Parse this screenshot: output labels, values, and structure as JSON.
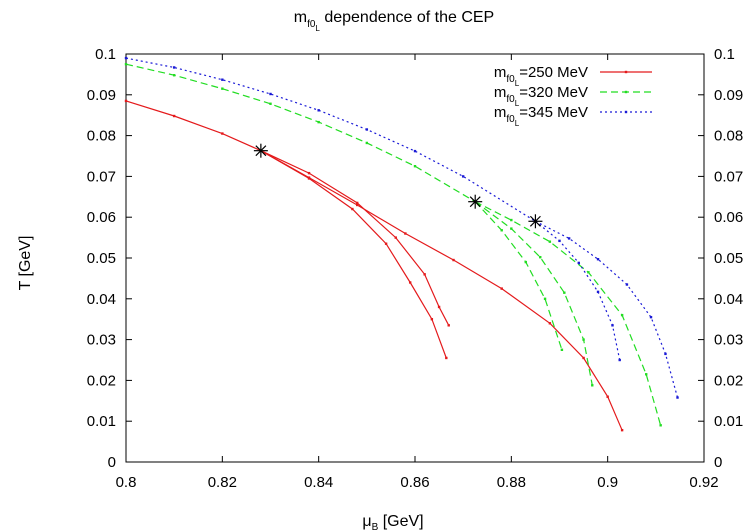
{
  "chart_data": {
    "type": "line",
    "title": {
      "base": "m",
      "sub": "f0",
      "subsub": "L",
      "rest": " dependence of the CEP"
    },
    "xlabel": {
      "base": "μ",
      "sub": "B",
      "rest": "  [GeV]"
    },
    "ylabel": "T [GeV]",
    "xlim": [
      0.8,
      0.92
    ],
    "ylim": [
      0,
      0.1
    ],
    "xticks": [
      "0.8",
      "0.82",
      "0.84",
      "0.86",
      "0.88",
      "0.9",
      "0.92"
    ],
    "yticks": [
      "0",
      "0.01",
      "0.02",
      "0.03",
      "0.04",
      "0.05",
      "0.06",
      "0.07",
      "0.08",
      "0.09",
      "0.1"
    ],
    "y2ticks": [
      "0",
      "0.01",
      "0.02",
      "0.03",
      "0.04",
      "0.05",
      "0.06",
      "0.07",
      "0.08",
      "0.09",
      "0.1"
    ],
    "legend_position": "top-right",
    "grid": false,
    "series": [
      {
        "name_parts": {
          "base": "m",
          "sub": "f0",
          "subsub": "L",
          "rest": "=250 MeV"
        },
        "color": "#e41a1c",
        "dash": "solid",
        "curves": [
          {
            "x": [
              0.8,
              0.81,
              0.82,
              0.828
            ],
            "y": [
              0.0885,
              0.0848,
              0.0805,
              0.0763
            ]
          },
          {
            "x": [
              0.828,
              0.838,
              0.848,
              0.858,
              0.868,
              0.878,
              0.888,
              0.895,
              0.9,
              0.903
            ],
            "y": [
              0.0763,
              0.0697,
              0.063,
              0.056,
              0.0495,
              0.0425,
              0.034,
              0.0255,
              0.016,
              0.0078
            ]
          },
          {
            "x": [
              0.828,
              0.838,
              0.848,
              0.856,
              0.862,
              0.865,
              0.867
            ],
            "y": [
              0.0763,
              0.0708,
              0.0635,
              0.055,
              0.046,
              0.038,
              0.0335
            ]
          },
          {
            "x": [
              0.828,
              0.838,
              0.847,
              0.854,
              0.859,
              0.8635,
              0.8665
            ],
            "y": [
              0.0763,
              0.0695,
              0.062,
              0.0535,
              0.044,
              0.035,
              0.0255
            ]
          }
        ]
      },
      {
        "name_parts": {
          "base": "m",
          "sub": "f0",
          "subsub": "L",
          "rest": "=320 MeV"
        },
        "color": "#22dd22",
        "dash": "dashed",
        "curves": [
          {
            "x": [
              0.8,
              0.81,
              0.82,
              0.83,
              0.84,
              0.85,
              0.86,
              0.8725
            ],
            "y": [
              0.0975,
              0.0948,
              0.0915,
              0.0878,
              0.0833,
              0.0782,
              0.0725,
              0.0638
            ]
          },
          {
            "x": [
              0.8725,
              0.88,
              0.888,
              0.896,
              0.903,
              0.908,
              0.911
            ],
            "y": [
              0.0638,
              0.0593,
              0.054,
              0.0465,
              0.036,
              0.0215,
              0.009
            ]
          },
          {
            "x": [
              0.8725,
              0.88,
              0.886,
              0.891,
              0.895,
              0.8968
            ],
            "y": [
              0.0638,
              0.0572,
              0.0502,
              0.0415,
              0.03,
              0.0188
            ]
          },
          {
            "x": [
              0.8725,
              0.878,
              0.883,
              0.887,
              0.8905
            ],
            "y": [
              0.0638,
              0.0568,
              0.049,
              0.04,
              0.0275
            ]
          }
        ]
      },
      {
        "name_parts": {
          "base": "m",
          "sub": "f0",
          "subsub": "L",
          "rest": "=345 MeV"
        },
        "color": "#1a1ad6",
        "dash": "dotted",
        "curves": [
          {
            "x": [
              0.8,
              0.81,
              0.82,
              0.83,
              0.84,
              0.85,
              0.86,
              0.87,
              0.885
            ],
            "y": [
              0.099,
              0.0967,
              0.0937,
              0.0902,
              0.0862,
              0.0815,
              0.0762,
              0.07,
              0.059
            ]
          },
          {
            "x": [
              0.885,
              0.892,
              0.898,
              0.904,
              0.909,
              0.912,
              0.9145
            ],
            "y": [
              0.059,
              0.0548,
              0.0497,
              0.0435,
              0.0355,
              0.0265,
              0.0158
            ]
          },
          {
            "x": [
              0.885,
              0.89,
              0.894,
              0.898,
              0.901,
              0.9025
            ],
            "y": [
              0.059,
              0.0542,
              0.0488,
              0.0417,
              0.0335,
              0.025
            ]
          }
        ]
      }
    ],
    "cep_points": [
      {
        "x": 0.828,
        "y": 0.0763
      },
      {
        "x": 0.8725,
        "y": 0.0638
      },
      {
        "x": 0.885,
        "y": 0.059
      }
    ]
  }
}
